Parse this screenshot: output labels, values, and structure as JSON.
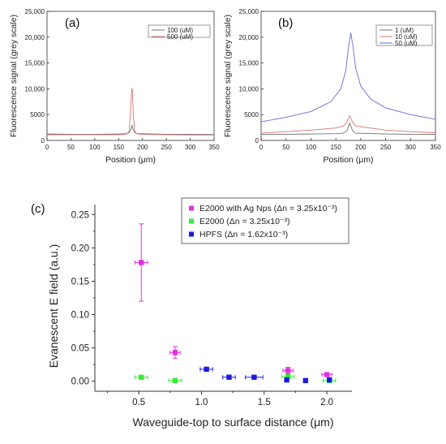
{
  "chart_data": [
    {
      "panel_label": "(a)",
      "type": "line",
      "xlabel": "Position (μm)",
      "ylabel": "Fluorescence signal (grey scale)",
      "xlim": [
        0,
        350
      ],
      "ylim": [
        0,
        25000
      ],
      "xticks": [
        "0",
        "50",
        "100",
        "150",
        "200",
        "250",
        "300",
        "350"
      ],
      "yticks": [
        "0",
        "5000",
        "10,000",
        "15,000",
        "20,000",
        "25,000"
      ],
      "legend_position": "top-right",
      "series": [
        {
          "name": "100 (uM)",
          "color": "#707070",
          "x": [
            0,
            50,
            100,
            150,
            165,
            172,
            176,
            178,
            180,
            184,
            190,
            250,
            300,
            350
          ],
          "y": [
            1250,
            1200,
            1200,
            1250,
            1300,
            1500,
            2200,
            3000,
            2200,
            1500,
            1300,
            1200,
            1200,
            1150
          ]
        },
        {
          "name": "500 (uM)",
          "color": "#d27878",
          "x": [
            0,
            50,
            100,
            150,
            165,
            172,
            175,
            177,
            178,
            179,
            181,
            184,
            190,
            250,
            300,
            350
          ],
          "y": [
            1100,
            1100,
            1100,
            1100,
            1200,
            1700,
            5500,
            9500,
            10100,
            9300,
            4500,
            1700,
            1200,
            1100,
            1050,
            1050
          ]
        }
      ]
    },
    {
      "panel_label": "(b)",
      "type": "line",
      "xlabel": "Position (μm)",
      "ylabel": "Fluorescence signal (grey scale)",
      "xlim": [
        0,
        350
      ],
      "ylim": [
        0,
        25000
      ],
      "xticks": [
        "0",
        "50",
        "100",
        "150",
        "200",
        "250",
        "300",
        "350"
      ],
      "yticks": [
        "0",
        "5000",
        "10,000",
        "15,000",
        "20,000",
        "25,000"
      ],
      "legend_position": "top-right",
      "series": [
        {
          "name": "1 (uM)",
          "color": "#707070",
          "x": [
            0,
            50,
            100,
            150,
            165,
            172,
            176,
            178,
            180,
            184,
            190,
            250,
            300,
            350
          ],
          "y": [
            1200,
            1200,
            1250,
            1300,
            1400,
            1800,
            2800,
            3400,
            2800,
            1800,
            1400,
            1250,
            1200,
            1200
          ]
        },
        {
          "name": "10 (uM)",
          "color": "#d27878",
          "x": [
            0,
            50,
            100,
            150,
            165,
            172,
            176,
            178,
            180,
            184,
            190,
            250,
            300,
            350
          ],
          "y": [
            1400,
            1700,
            2000,
            2400,
            2800,
            3500,
            4400,
            4800,
            4300,
            3500,
            2800,
            2000,
            1700,
            1500
          ]
        },
        {
          "name": "50 (uM)",
          "color": "#6a6ad8",
          "x": [
            0,
            50,
            100,
            140,
            160,
            170,
            176,
            180,
            184,
            190,
            200,
            220,
            250,
            300,
            350
          ],
          "y": [
            3600,
            4500,
            5600,
            7500,
            10000,
            13500,
            18500,
            20800,
            18500,
            14000,
            10500,
            8000,
            6300,
            5000,
            4100
          ]
        }
      ]
    },
    {
      "panel_label": "(c)",
      "type": "scatter",
      "xlabel": "Waveguide-top to surface distance (μm)",
      "ylabel": "Evanescent E field (a.u.)",
      "xlim": [
        0.15,
        2.2
      ],
      "ylim": [
        -0.015,
        0.265
      ],
      "xticks": [
        "0.5",
        "1.0",
        "1.5",
        "2.0"
      ],
      "yticks": [
        "0.00",
        "0.05",
        "0.10",
        "0.15",
        "0.20",
        "0.25"
      ],
      "legend_position": "top-right",
      "series": [
        {
          "name": "E2000 with Ag Nps (Δn = 3.25x10⁻³)",
          "color": "#e030e0",
          "points": [
            {
              "x": 0.52,
              "y": 0.178,
              "xerr": 0.05,
              "yerr": 0.058
            },
            {
              "x": 0.79,
              "y": 0.043,
              "xerr": 0.04,
              "yerr": 0.009
            },
            {
              "x": 1.69,
              "y": 0.016,
              "xerr": 0.04,
              "yerr": 0.005
            },
            {
              "x": 2.0,
              "y": 0.01,
              "xerr": 0.04,
              "yerr": 0.003
            }
          ]
        },
        {
          "name": "E2000 (Δn = 3.25x10⁻³)",
          "color": "#33ee33",
          "points": [
            {
              "x": 0.52,
              "y": 0.006,
              "xerr": 0.05,
              "yerr": 0.0
            },
            {
              "x": 0.79,
              "y": 0.001,
              "xerr": 0.05,
              "yerr": 0.0
            },
            {
              "x": 1.69,
              "y": 0.007,
              "xerr": 0.05,
              "yerr": 0.0
            },
            {
              "x": 2.02,
              "y": 0.001,
              "xerr": 0.05,
              "yerr": 0.0
            }
          ]
        },
        {
          "name": "HPFS (Δn = 1.62x10⁻³)",
          "color": "#1b1be0",
          "points": [
            {
              "x": 1.04,
              "y": 0.018,
              "xerr": 0.05,
              "yerr": 0.0
            },
            {
              "x": 1.22,
              "y": 0.006,
              "xerr": 0.05,
              "yerr": 0.0
            },
            {
              "x": 1.42,
              "y": 0.006,
              "xerr": 0.07,
              "yerr": 0.0
            },
            {
              "x": 1.68,
              "y": 0.002,
              "xerr": 0.0,
              "yerr": 0.0
            },
            {
              "x": 1.83,
              "y": 0.001,
              "xerr": 0.0,
              "yerr": 0.0
            },
            {
              "x": 2.02,
              "y": 0.002,
              "xerr": 0.0,
              "yerr": 0.0
            }
          ]
        }
      ]
    }
  ]
}
